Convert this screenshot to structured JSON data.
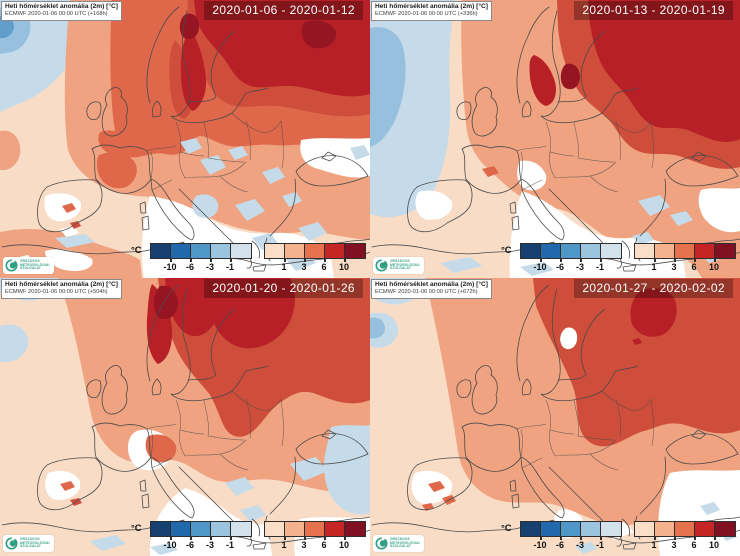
{
  "panels": [
    {
      "header_line1": "Heti hőmérséklet anomália (2m) [°C]",
      "header_line2": "ECMWF 2020-01-06 00:00 UTC (+168h)",
      "date_range": "2020-01-06 - 2020-01-12"
    },
    {
      "header_line1": "Heti hőmérséklet anomália (2m) [°C]",
      "header_line2": "ECMWF 2020-01-06 00:00 UTC (+336h)",
      "date_range": "2020-01-13 - 2020-01-19"
    },
    {
      "header_line1": "Heti hőmérséklet anomália (2m) [°C]",
      "header_line2": "ECMWF 2020-01-06 00:00 UTC (+504h)",
      "date_range": "2020-01-20 - 2020-01-26"
    },
    {
      "header_line1": "Heti hőmérséklet anomália (2m) [°C]",
      "header_line2": "ECMWF 2020-01-06 00:00 UTC (+672h)",
      "date_range": "2020-01-27 - 2020-02-02"
    }
  ],
  "colorbar": {
    "unit": "°C",
    "cold_tick_labels": [
      "-10",
      "-6",
      "-3",
      "-1"
    ],
    "warm_tick_labels": [
      "1",
      "3",
      "6",
      "10"
    ],
    "cold_colors": [
      "#16406f",
      "#2268ad",
      "#4f97c7",
      "#9cc4df",
      "#d2e1ec"
    ],
    "warm_colors": [
      "#fadec7",
      "#f5b38d",
      "#e5714d",
      "#c62526",
      "#811122"
    ]
  },
  "logo": {
    "lines": [
      "ORSZÁGOS",
      "METEOROLÓGIAI",
      "SZOLGÁLAT"
    ]
  },
  "map_palette": {
    "pale_warm": "#f8dcc6",
    "salmon": "#efa381",
    "orange_red": "#df674a",
    "red": "#cf4e3b",
    "crimson": "#b82027",
    "dark_red": "#951523",
    "pale_blue": "#c5dbe9",
    "light_blue": "#96c0dd",
    "mid_blue": "#609dca",
    "neutral": "#ffffff",
    "coastline": "#4a4a4a",
    "logo_green": "#2f9e82"
  }
}
